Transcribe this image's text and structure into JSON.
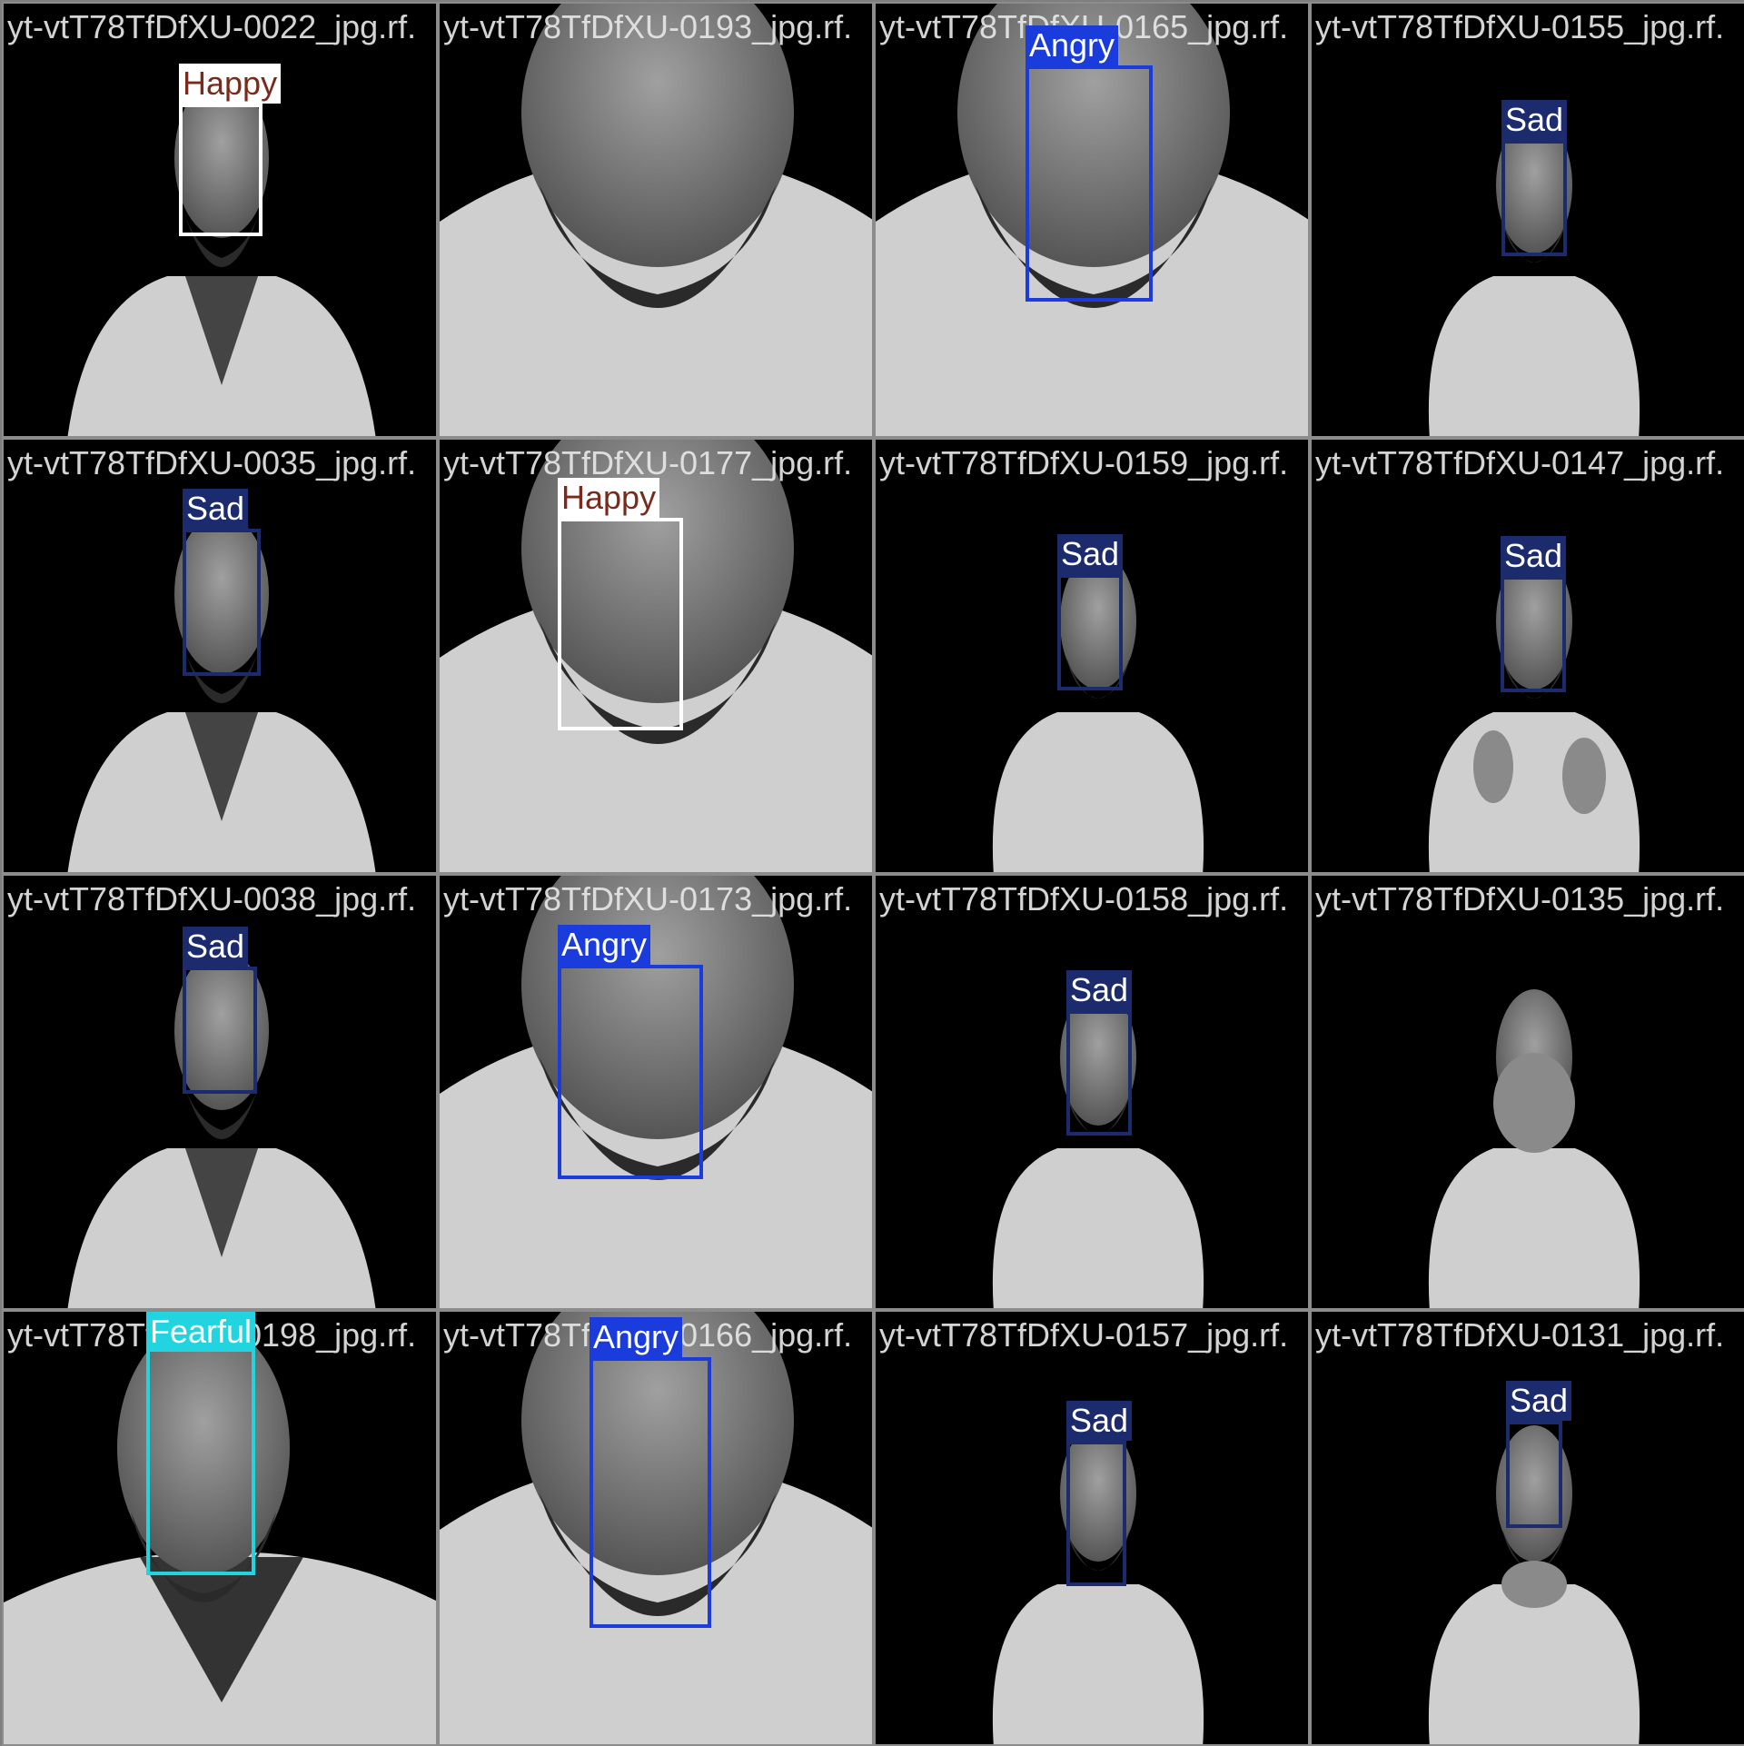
{
  "tiles": [
    {
      "filename": "yt-vtT78TfDfXU-0022_jpg.rf.",
      "label": "Happy",
      "box_color": "#ffffff",
      "label_text_color": "#7a2a1a",
      "scene": "smile",
      "box_present": true
    },
    {
      "filename": "yt-vtT78TfDfXU-0193_jpg.rf.",
      "label": "",
      "box_color": "",
      "label_text_color": "",
      "scene": "closeup",
      "box_present": false
    },
    {
      "filename": "yt-vtT78TfDfXU-0165_jpg.rf.",
      "label": "Angry",
      "box_color": "#1a3cdc",
      "label_text_color": "#ffffff",
      "scene": "closeup",
      "box_present": true
    },
    {
      "filename": "yt-vtT78TfDfXU-0155_jpg.rf.",
      "label": "Sad",
      "box_color": "#1c2a6e",
      "label_text_color": "#ffffff",
      "scene": "far",
      "box_present": true
    },
    {
      "filename": "yt-vtT78TfDfXU-0035_jpg.rf.",
      "label": "Sad",
      "box_color": "#1c2a6e",
      "label_text_color": "#ffffff",
      "scene": "smile",
      "box_present": true
    },
    {
      "filename": "yt-vtT78TfDfXU-0177_jpg.rf.",
      "label": "Happy",
      "box_color": "#ffffff",
      "label_text_color": "#7a2a1a",
      "scene": "closeup",
      "box_present": true
    },
    {
      "filename": "yt-vtT78TfDfXU-0159_jpg.rf.",
      "label": "Sad",
      "box_color": "#1c2a6e",
      "label_text_color": "#ffffff",
      "scene": "far",
      "box_present": true
    },
    {
      "filename": "yt-vtT78TfDfXU-0147_jpg.rf.",
      "label": "Sad",
      "box_color": "#1c2a6e",
      "label_text_color": "#ffffff",
      "scene": "far_hands",
      "box_present": true
    },
    {
      "filename": "yt-vtT78TfDfXU-0038_jpg.rf.",
      "label": "Sad",
      "box_color": "#1c2a6e",
      "label_text_color": "#ffffff",
      "scene": "smile",
      "box_present": true
    },
    {
      "filename": "yt-vtT78TfDfXU-0173_jpg.rf.",
      "label": "Angry",
      "box_color": "#1a3cdc",
      "label_text_color": "#ffffff",
      "scene": "closeup",
      "box_present": true
    },
    {
      "filename": "yt-vtT78TfDfXU-0158_jpg.rf.",
      "label": "Sad",
      "box_color": "#1c2a6e",
      "label_text_color": "#ffffff",
      "scene": "far",
      "box_present": true
    },
    {
      "filename": "yt-vtT78TfDfXU-0135_jpg.rf.",
      "label": "",
      "box_color": "",
      "label_text_color": "",
      "scene": "far_cover",
      "box_present": false
    },
    {
      "filename": "yt-vtT78TfDfXU-0198_jpg.rf.",
      "label": "Fearful",
      "box_color": "#22d3e0",
      "label_text_color": "#ffffff",
      "scene": "mid",
      "box_present": true
    },
    {
      "filename": "yt-vtT78TfDfXU-0166_jpg.rf.",
      "label": "Angry",
      "box_color": "#1a3cdc",
      "label_text_color": "#ffffff",
      "scene": "closeup",
      "box_present": true
    },
    {
      "filename": "yt-vtT78TfDfXU-0157_jpg.rf.",
      "label": "Sad",
      "box_color": "#1c2a6e",
      "label_text_color": "#ffffff",
      "scene": "far",
      "box_present": true
    },
    {
      "filename": "yt-vtT78TfDfXU-0131_jpg.rf.",
      "label": "Sad",
      "box_color": "#1c2a6e",
      "label_text_color": "#ffffff",
      "scene": "far_chin",
      "box_present": true
    }
  ]
}
